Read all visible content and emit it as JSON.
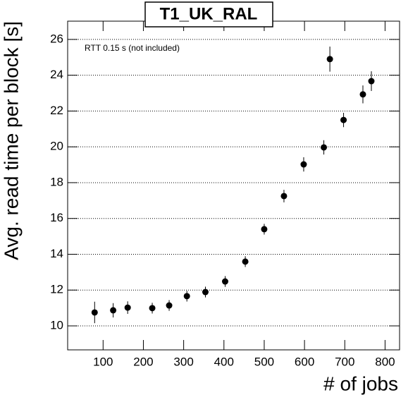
{
  "chart_data": {
    "type": "scatter",
    "title": "T1_UK_RAL",
    "annotation": "RTT 0.15 s (not included)",
    "xlabel": "# of jobs",
    "ylabel": "Avg. read time per block [s]",
    "x": [
      79,
      125,
      161,
      222,
      264,
      308,
      354,
      403,
      453,
      500,
      549,
      598,
      648,
      663,
      697,
      745,
      766
    ],
    "series": [
      {
        "name": "T1_UK_RAL",
        "color": "#000000",
        "values": [
          10.75,
          10.87,
          11.02,
          10.99,
          11.14,
          11.66,
          11.89,
          12.48,
          13.59,
          15.4,
          17.25,
          19.02,
          19.97,
          24.9,
          21.5,
          22.93,
          23.67
        ],
        "errors": [
          0.6,
          0.4,
          0.35,
          0.3,
          0.3,
          0.3,
          0.3,
          0.3,
          0.3,
          0.3,
          0.35,
          0.4,
          0.4,
          0.7,
          0.4,
          0.5,
          0.55
        ]
      }
    ],
    "xlim": [
      12,
      836
    ],
    "xticks": [
      100,
      200,
      300,
      400,
      500,
      600,
      700,
      800
    ],
    "ylim": [
      8.66,
      27.02
    ],
    "yticks": [
      10,
      12,
      14,
      16,
      18,
      20,
      22,
      24,
      26
    ],
    "grid": true
  }
}
